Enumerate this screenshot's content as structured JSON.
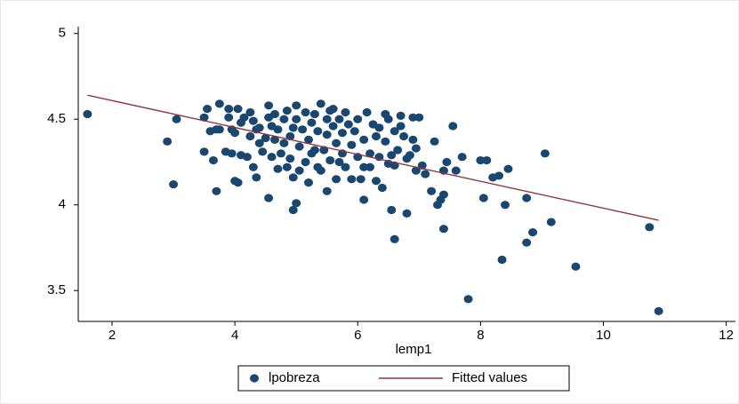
{
  "chart_data": {
    "type": "scatter",
    "xlabel": "lemp1",
    "xlim": [
      1.45,
      12.15
    ],
    "xticks": [
      2,
      4,
      6,
      8,
      10,
      12
    ],
    "ylim": [
      3.32,
      5.04
    ],
    "yticks": [
      3.5,
      4,
      4.5,
      5
    ],
    "grid": false,
    "legend": "bottom",
    "series": [
      {
        "name": "lpobreza",
        "type": "scatter",
        "color": "#1a476f",
        "x": [
          1.6,
          2.9,
          3.0,
          3.05,
          3.5,
          3.65,
          3.7,
          4.0,
          4.05,
          4.35,
          4.55,
          4.95,
          5.0,
          5.5,
          6.1,
          6.55,
          6.6,
          6.8,
          7.3,
          7.35,
          7.4,
          7.4,
          7.8,
          8.0,
          8.05,
          8.1,
          8.35,
          8.4,
          8.45,
          8.3,
          8.2,
          8.75,
          8.75,
          8.85,
          9.05,
          9.15,
          9.55,
          10.75,
          10.9,
          7.7,
          7.55,
          7.6,
          7.45,
          7.4,
          7.25,
          7.1,
          7.05,
          7.2,
          7.0,
          6.9,
          6.95,
          6.85,
          6.7,
          6.75,
          6.5,
          6.55,
          6.6,
          6.4,
          6.3,
          6.2,
          3.5,
          3.55,
          3.6,
          3.7,
          3.75,
          3.75,
          3.9,
          3.9,
          3.95,
          3.95,
          4.0,
          4.05,
          4.1,
          4.15,
          4.1,
          4.2,
          4.25,
          4.25,
          4.3,
          4.35,
          4.4,
          4.45,
          4.5,
          4.55,
          4.55,
          4.6,
          4.6,
          4.65,
          4.7,
          4.7,
          4.75,
          4.8,
          4.85,
          4.9,
          4.9,
          4.95,
          4.95,
          5.0,
          5.0,
          5.05,
          5.05,
          5.1,
          5.15,
          5.15,
          5.2,
          5.2,
          5.25,
          5.3,
          5.3,
          5.35,
          5.4,
          5.4,
          5.45,
          5.5,
          5.5,
          5.55,
          5.6,
          5.6,
          5.65,
          5.65,
          5.7,
          5.75,
          5.75,
          5.8,
          5.8,
          5.85,
          5.9,
          5.9,
          5.95,
          6.0,
          6.0,
          6.05,
          6.1,
          6.15,
          6.2,
          6.25,
          6.3,
          6.35,
          6.45,
          6.45,
          6.5,
          6.6,
          6.65,
          6.7,
          6.8,
          6.9,
          6.95,
          4.4,
          4.8,
          5.25,
          5.7,
          6.1,
          3.85,
          4.3,
          4.85,
          5.35,
          5.55,
          4.65,
          6.35
        ],
        "values": [
          4.53,
          4.37,
          4.12,
          4.5,
          4.31,
          4.26,
          4.08,
          4.14,
          4.13,
          4.16,
          4.04,
          3.97,
          4.01,
          4.08,
          4.03,
          3.97,
          3.8,
          3.95,
          4.0,
          4.03,
          3.86,
          4.06,
          3.45,
          4.26,
          4.04,
          4.26,
          3.68,
          4.0,
          4.21,
          4.17,
          4.16,
          3.78,
          4.04,
          3.84,
          4.3,
          3.9,
          3.64,
          3.87,
          3.38,
          4.28,
          4.46,
          4.2,
          4.25,
          4.2,
          4.37,
          4.18,
          4.23,
          4.08,
          4.51,
          4.38,
          4.33,
          4.29,
          4.46,
          4.4,
          4.24,
          4.29,
          4.23,
          4.1,
          4.14,
          4.22,
          4.51,
          4.56,
          4.43,
          4.44,
          4.59,
          4.44,
          4.56,
          4.51,
          4.44,
          4.3,
          4.42,
          4.56,
          4.48,
          4.51,
          4.29,
          4.28,
          4.4,
          4.54,
          4.49,
          4.44,
          4.36,
          4.31,
          4.39,
          4.51,
          4.58,
          4.46,
          4.28,
          4.53,
          4.44,
          4.21,
          4.3,
          4.5,
          4.55,
          4.4,
          4.27,
          4.45,
          4.16,
          4.58,
          4.5,
          4.34,
          4.2,
          4.44,
          4.54,
          4.25,
          4.38,
          4.13,
          4.48,
          4.53,
          4.32,
          4.43,
          4.59,
          4.2,
          4.32,
          4.5,
          4.41,
          4.26,
          4.56,
          4.46,
          4.36,
          4.15,
          4.5,
          4.42,
          4.3,
          4.54,
          4.22,
          4.47,
          4.35,
          4.15,
          4.43,
          4.5,
          4.28,
          4.15,
          4.38,
          4.54,
          4.3,
          4.47,
          4.4,
          4.28,
          4.53,
          4.37,
          4.5,
          4.43,
          4.32,
          4.52,
          4.27,
          4.51,
          4.2,
          4.45,
          4.36,
          4.3,
          4.25,
          4.22,
          4.31,
          4.22,
          4.22,
          4.22,
          4.55,
          4.38,
          4.45
        ]
      },
      {
        "name": "Fitted values",
        "type": "line",
        "color": "#90353b",
        "x": [
          1.6,
          10.9
        ],
        "values": [
          4.64,
          3.91
        ]
      }
    ]
  }
}
